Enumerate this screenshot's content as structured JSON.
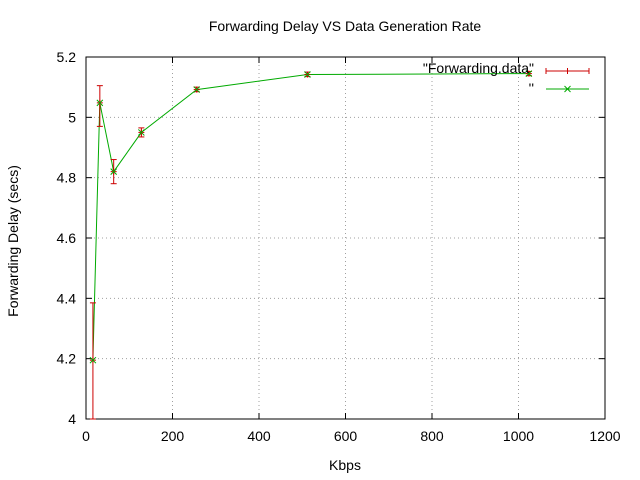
{
  "chart_data": {
    "type": "line",
    "title": "Forwarding Delay VS Data Generation Rate",
    "xlabel": "Kbps",
    "ylabel": "Forwarding Delay (secs)",
    "xlim": [
      0,
      1200
    ],
    "ylim": [
      4,
      5.2
    ],
    "xticks": [
      0,
      200,
      400,
      600,
      800,
      1000,
      1200
    ],
    "yticks": [
      4,
      4.2,
      4.4,
      4.6,
      4.8,
      5,
      5.2
    ],
    "xtick_labels": [
      "0",
      "200",
      "400",
      "600",
      "800",
      "1000",
      "1200"
    ],
    "ytick_labels": [
      "4",
      "4.2",
      "4.4",
      "4.6",
      "4.8",
      "5",
      "5.2"
    ],
    "grid": true,
    "legend_position": "top-right",
    "x": [
      16,
      32,
      64,
      128,
      256,
      512,
      1024
    ],
    "series": [
      {
        "name": "\"Forwarding.data\"",
        "style": "errorbars",
        "color": "#cc0000",
        "values": [
          4.195,
          5.048,
          4.82,
          4.95,
          5.092,
          5.142,
          5.145
        ],
        "err_low": [
          4.0,
          4.97,
          4.78,
          4.935,
          5.085,
          5.135,
          5.138
        ],
        "err_high": [
          4.385,
          5.105,
          4.86,
          4.965,
          5.1,
          5.15,
          5.152
        ]
      },
      {
        "name": "''",
        "style": "linespoints",
        "color": "#00aa00",
        "values": [
          4.195,
          5.048,
          4.82,
          4.95,
          5.092,
          5.142,
          5.145
        ]
      }
    ]
  }
}
